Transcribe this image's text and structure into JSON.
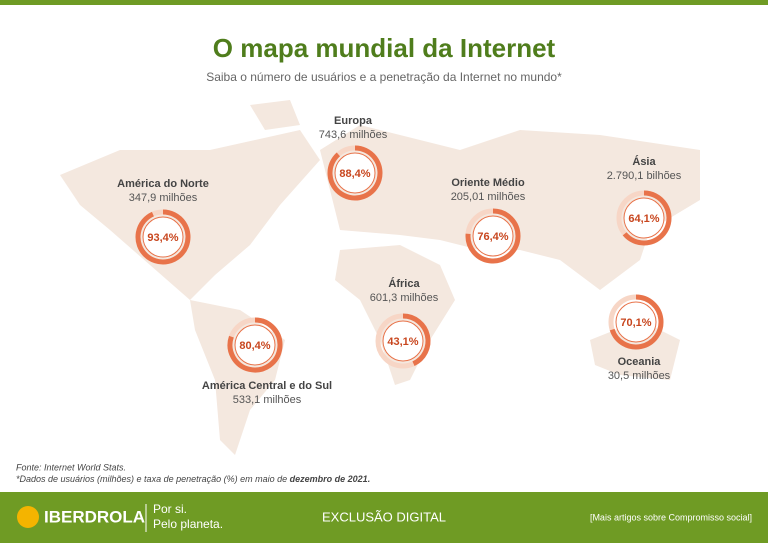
{
  "chart_data": {
    "type": "donut",
    "title": "O mapa mundial da Internet",
    "subtitle": "Saiba o número de usuários e a penetração da Internet no mundo*",
    "color": "#e8734a",
    "track_color": "#f7d6c6",
    "categories": [
      "América do Norte",
      "Europa",
      "Oriente Médio",
      "Ásia",
      "África",
      "América Central e do Sul",
      "Oceania"
    ],
    "users": [
      "347,9 milhões",
      "743,6 milhões",
      "205,01 milhões",
      "2.790,1 bilhões",
      "601,3 milhões",
      "533,1 milhões",
      "30,5 milhões"
    ],
    "values": [
      93.4,
      88.4,
      76.4,
      64.1,
      43.1,
      80.4,
      70.1
    ],
    "value_labels": [
      "93,4%",
      "88,4%",
      "76,4%",
      "64,1%",
      "43,1%",
      "80,4%",
      "70,1%"
    ]
  },
  "notes": {
    "source": "Fonte: Internet World Stats.",
    "detail": "*Dados de usuários (milhões) e taxa de penetração (%) em maio de",
    "detail_bold": "dezembro de 2021."
  },
  "footer": {
    "brand": "IBERDROLA",
    "slogan_1": "Por si.",
    "slogan_2": "Pelo planeta.",
    "section": "EXCLUSÃO DIGITAL",
    "link": "[Mais artigos sobre Compromisso social]"
  }
}
